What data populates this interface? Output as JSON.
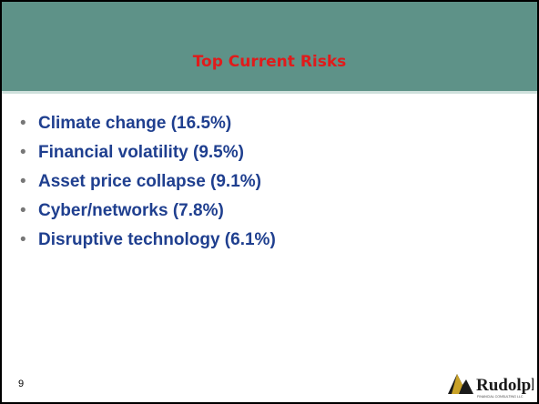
{
  "header": {
    "title": "Top Current Risks"
  },
  "bullets": [
    "Climate change (16.5%)",
    "Financial volatility (9.5%)",
    "Asset price collapse (9.1%)",
    "Cyber/networks (7.8%)",
    "Disruptive technology (6.1%)"
  ],
  "footer": {
    "page_number": "9",
    "logo_name": "Rudolph",
    "logo_caption": "FINANCIAL CONSULTING LLC"
  }
}
